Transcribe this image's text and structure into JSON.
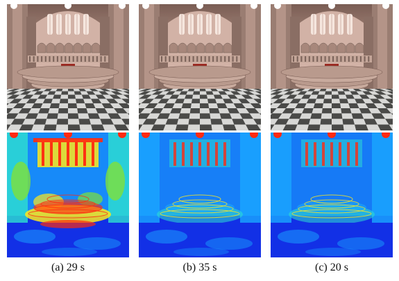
{
  "figure": {
    "columns": [
      {
        "caption": "(a) 29 s"
      },
      {
        "caption": "(b) 35 s"
      },
      {
        "caption": "(c) 20 s"
      }
    ],
    "rows": [
      "rendered-image",
      "error-heatmap"
    ]
  },
  "colors": {
    "background": "#ffffff",
    "stone": "#b8978a",
    "stone_dark": "#6e5a52",
    "window_glow": "#f5e6de",
    "carpet": "#9b2a22",
    "floor_light": "#d8d8d6",
    "floor_dark": "#4a4a48",
    "heat_low": "#1230e6",
    "heat_midlow": "#1aa8ff",
    "heat_mid": "#2ee0d0",
    "heat_midhigh": "#7fe03a",
    "heat_high": "#ffe81a",
    "heat_max": "#ff2a10"
  }
}
